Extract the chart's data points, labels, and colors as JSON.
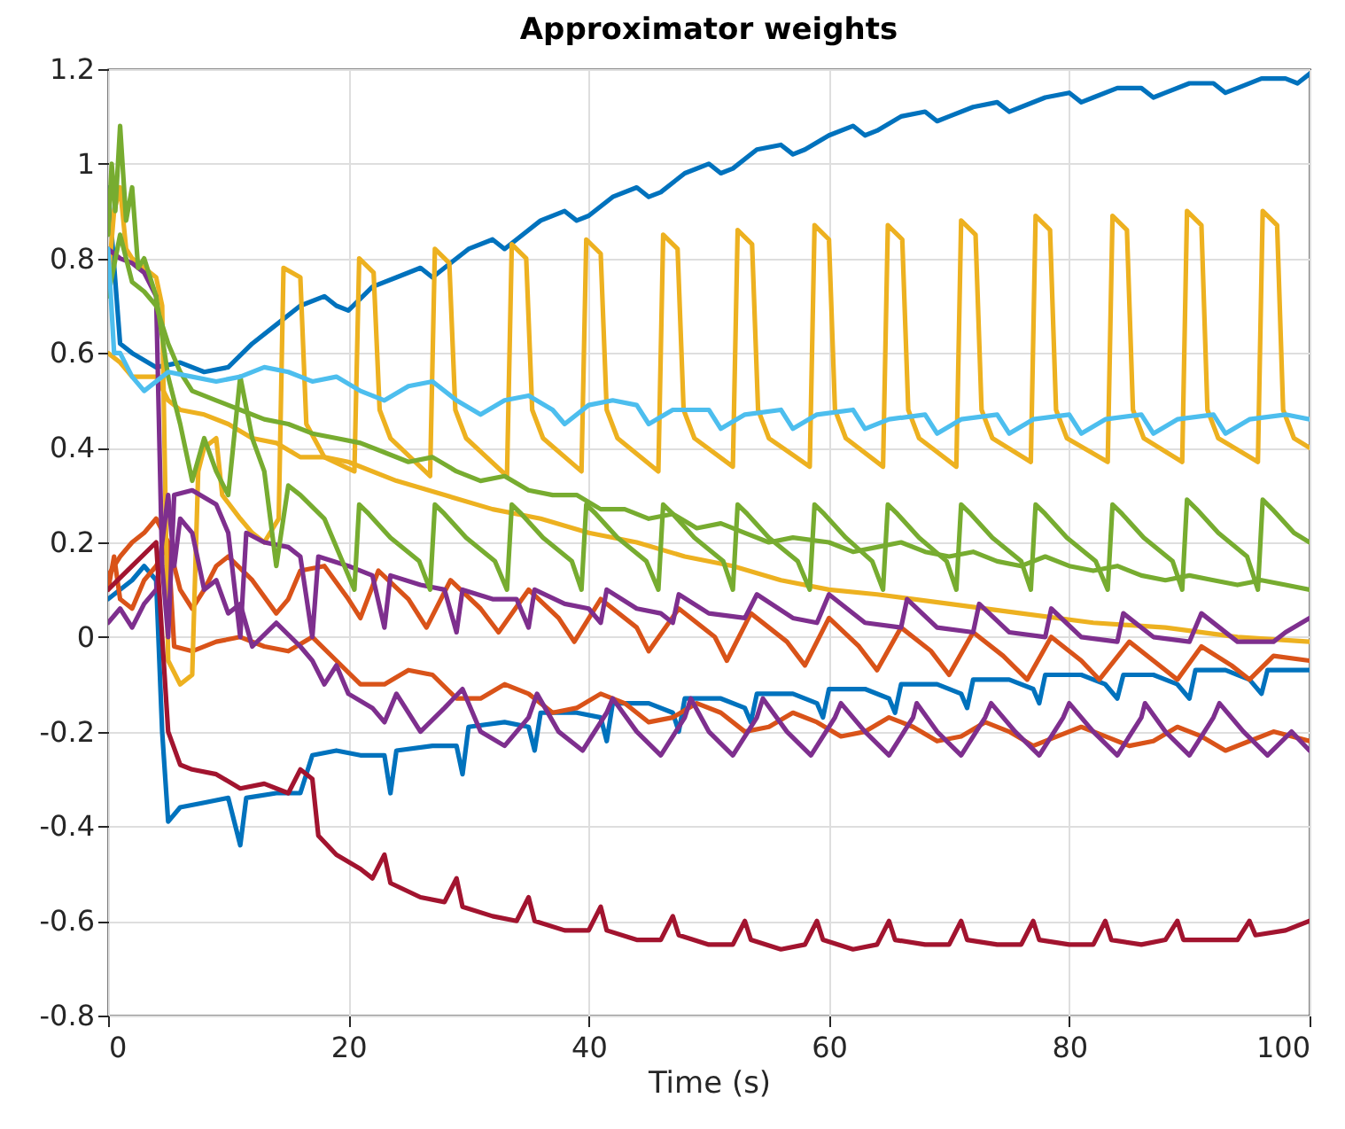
{
  "chart_data": {
    "type": "line",
    "title": "Approximator weights",
    "xlabel": "Time (s)",
    "xlim": [
      0,
      100
    ],
    "xticks": [
      0,
      20,
      40,
      60,
      80,
      100
    ],
    "ylim": [
      -0.8,
      1.2
    ],
    "yticks": [
      -0.8,
      -0.6,
      -0.4,
      -0.2,
      0,
      0.2,
      0.4,
      0.6,
      0.8,
      1,
      1.2
    ],
    "grid": true,
    "legend": false,
    "line_style": "solid",
    "series": [
      {
        "color": "#0072bd",
        "x": [
          0,
          1,
          2,
          4,
          6,
          8,
          10,
          12,
          14,
          16,
          18,
          19,
          20,
          22,
          24,
          26,
          27,
          28,
          30,
          32,
          33,
          34,
          36,
          38,
          39,
          40,
          42,
          44,
          45,
          46,
          48,
          50,
          51,
          52,
          54,
          56,
          57,
          58,
          60,
          62,
          63,
          64,
          66,
          68,
          69,
          70,
          72,
          74,
          75,
          76,
          78,
          80,
          81,
          82,
          84,
          86,
          87,
          88,
          90,
          92,
          93,
          94,
          96,
          98,
          99,
          100
        ],
        "values": [
          0.95,
          0.62,
          0.6,
          0.57,
          0.58,
          0.56,
          0.57,
          0.62,
          0.66,
          0.7,
          0.72,
          0.7,
          0.69,
          0.74,
          0.76,
          0.78,
          0.76,
          0.78,
          0.82,
          0.84,
          0.82,
          0.84,
          0.88,
          0.9,
          0.88,
          0.89,
          0.93,
          0.95,
          0.93,
          0.94,
          0.98,
          1.0,
          0.98,
          0.99,
          1.03,
          1.04,
          1.02,
          1.03,
          1.06,
          1.08,
          1.06,
          1.07,
          1.1,
          1.11,
          1.09,
          1.1,
          1.12,
          1.13,
          1.11,
          1.12,
          1.14,
          1.15,
          1.13,
          1.14,
          1.16,
          1.16,
          1.14,
          1.15,
          1.17,
          1.17,
          1.15,
          1.16,
          1.18,
          1.18,
          1.17,
          1.19
        ]
      },
      {
        "color": "#0072bd",
        "x": [
          0,
          2,
          3,
          4,
          4.5,
          5,
          6,
          8,
          10,
          11,
          11.5,
          14,
          16,
          17,
          19,
          21,
          23,
          23.5,
          24,
          27,
          29,
          29.5,
          30,
          33,
          35,
          35.5,
          36,
          39,
          41,
          41.5,
          42,
          45,
          47,
          47.5,
          48,
          51,
          53,
          53.5,
          54,
          57,
          59,
          59.5,
          60,
          63,
          65,
          65.5,
          66,
          69,
          71,
          71.5,
          72,
          75,
          77,
          77.5,
          78,
          81,
          83,
          84,
          84.5,
          87,
          89,
          90,
          90.5,
          93,
          95,
          96,
          96.5,
          100
        ],
        "values": [
          0.08,
          0.12,
          0.15,
          0.12,
          -0.2,
          -0.39,
          -0.36,
          -0.35,
          -0.34,
          -0.44,
          -0.34,
          -0.33,
          -0.33,
          -0.25,
          -0.24,
          -0.25,
          -0.25,
          -0.33,
          -0.24,
          -0.23,
          -0.23,
          -0.29,
          -0.19,
          -0.18,
          -0.19,
          -0.24,
          -0.16,
          -0.16,
          -0.17,
          -0.22,
          -0.14,
          -0.14,
          -0.16,
          -0.2,
          -0.13,
          -0.13,
          -0.15,
          -0.18,
          -0.12,
          -0.12,
          -0.14,
          -0.17,
          -0.11,
          -0.11,
          -0.13,
          -0.16,
          -0.1,
          -0.1,
          -0.12,
          -0.15,
          -0.09,
          -0.09,
          -0.11,
          -0.14,
          -0.08,
          -0.08,
          -0.1,
          -0.13,
          -0.08,
          -0.08,
          -0.1,
          -0.13,
          -0.07,
          -0.07,
          -0.09,
          -0.12,
          -0.07,
          -0.07
        ]
      },
      {
        "color": "#d95319",
        "x": [
          0,
          0.5,
          1,
          2,
          3,
          4,
          5,
          6,
          7,
          8,
          9,
          10,
          12,
          14,
          15,
          16,
          18,
          20,
          21,
          22.5,
          25,
          26.5,
          28.5,
          31,
          32.5,
          35,
          37.5,
          38.8,
          41,
          44,
          45,
          47.5,
          50.5,
          51.5,
          53.5,
          56.5,
          58,
          60,
          62.5,
          64,
          66,
          68.5,
          70,
          72,
          74.5,
          76.5,
          78.5,
          81,
          82.5,
          85,
          87,
          89,
          91,
          93.5,
          95,
          97,
          100
        ],
        "values": [
          0.1,
          0.17,
          0.08,
          0.06,
          0.12,
          0.15,
          0.2,
          0.1,
          0.06,
          0.1,
          0.15,
          0.17,
          0.12,
          0.05,
          0.08,
          0.14,
          0.15,
          0.08,
          0.04,
          0.14,
          0.08,
          0.02,
          0.12,
          0.06,
          0.01,
          0.1,
          0.04,
          -0.01,
          0.08,
          0.02,
          -0.03,
          0.06,
          0.0,
          -0.05,
          0.05,
          -0.01,
          -0.06,
          0.04,
          -0.02,
          -0.07,
          0.02,
          -0.03,
          -0.08,
          0.01,
          -0.04,
          -0.09,
          0.0,
          -0.05,
          -0.09,
          -0.01,
          -0.05,
          -0.09,
          -0.02,
          -0.06,
          -0.09,
          -0.04,
          -0.05
        ]
      },
      {
        "color": "#d95319",
        "x": [
          0,
          1,
          2,
          3,
          4,
          5,
          5.5,
          7,
          9,
          11,
          13,
          15,
          17,
          19,
          21,
          23,
          25,
          27,
          29,
          31,
          33,
          35,
          37,
          39,
          41,
          43,
          45,
          47,
          49,
          51,
          53,
          55,
          57,
          59,
          61,
          63,
          65,
          67,
          69,
          71,
          73,
          75,
          77,
          79,
          81,
          83,
          85,
          87,
          89,
          91,
          93,
          95,
          97,
          100
        ],
        "values": [
          0.13,
          0.17,
          0.2,
          0.22,
          0.25,
          0.2,
          -0.02,
          -0.03,
          -0.01,
          0.0,
          -0.02,
          -0.03,
          0.0,
          -0.05,
          -0.1,
          -0.1,
          -0.07,
          -0.08,
          -0.13,
          -0.13,
          -0.1,
          -0.12,
          -0.16,
          -0.15,
          -0.12,
          -0.14,
          -0.18,
          -0.17,
          -0.14,
          -0.16,
          -0.2,
          -0.19,
          -0.16,
          -0.18,
          -0.21,
          -0.2,
          -0.17,
          -0.19,
          -0.22,
          -0.21,
          -0.18,
          -0.2,
          -0.23,
          -0.21,
          -0.19,
          -0.21,
          -0.23,
          -0.22,
          -0.19,
          -0.21,
          -0.24,
          -0.22,
          -0.2,
          -0.22
        ]
      },
      {
        "color": "#edb120",
        "x": [
          0,
          0.5,
          1,
          1.5,
          2,
          3,
          4,
          4.5,
          5,
          6,
          7,
          7.5,
          8,
          9,
          9.5,
          11,
          12,
          13,
          14.2,
          14.6,
          16,
          16.5,
          18,
          20.5,
          20.9,
          22.1,
          22.6,
          23.5,
          26.8,
          27.2,
          28.4,
          28.9,
          29.8,
          33.2,
          33.6,
          34.8,
          35.3,
          36.2,
          39.4,
          39.8,
          41,
          41.5,
          42.4,
          45.8,
          46.2,
          47.4,
          47.9,
          48.8,
          52,
          52.4,
          53.6,
          54.1,
          55,
          58.4,
          58.8,
          60,
          60.5,
          61.4,
          64.5,
          64.9,
          66.1,
          66.6,
          67.5,
          70.6,
          71,
          72.2,
          72.7,
          73.6,
          76.8,
          77.2,
          78.4,
          78.9,
          79.8,
          83.2,
          83.6,
          84.8,
          85.3,
          86.2,
          89.4,
          89.8,
          91,
          91.5,
          92.4,
          95.7,
          96.1,
          97.3,
          97.8,
          98.7,
          100
        ],
        "values": [
          0.75,
          0.9,
          0.95,
          0.82,
          0.8,
          0.78,
          0.76,
          0.7,
          -0.05,
          -0.1,
          -0.08,
          0.35,
          0.4,
          0.42,
          0.3,
          0.25,
          0.22,
          0.2,
          0.25,
          0.78,
          0.76,
          0.45,
          0.38,
          0.35,
          0.8,
          0.77,
          0.48,
          0.42,
          0.34,
          0.82,
          0.79,
          0.48,
          0.42,
          0.34,
          0.83,
          0.8,
          0.48,
          0.42,
          0.35,
          0.84,
          0.81,
          0.48,
          0.42,
          0.35,
          0.85,
          0.82,
          0.48,
          0.42,
          0.36,
          0.86,
          0.83,
          0.48,
          0.42,
          0.36,
          0.87,
          0.84,
          0.48,
          0.42,
          0.36,
          0.87,
          0.84,
          0.48,
          0.42,
          0.36,
          0.88,
          0.85,
          0.48,
          0.42,
          0.37,
          0.89,
          0.86,
          0.48,
          0.42,
          0.37,
          0.89,
          0.86,
          0.48,
          0.42,
          0.37,
          0.9,
          0.87,
          0.48,
          0.42,
          0.37,
          0.9,
          0.87,
          0.48,
          0.42,
          0.4
        ]
      },
      {
        "color": "#edb120",
        "x": [
          0,
          1,
          2,
          4,
          5,
          6,
          8,
          10,
          12,
          14,
          16,
          18,
          20,
          24,
          28,
          32,
          36,
          40,
          44,
          48,
          52,
          56,
          60,
          64,
          70,
          76,
          82,
          88,
          94,
          100
        ],
        "values": [
          0.6,
          0.58,
          0.55,
          0.55,
          0.5,
          0.48,
          0.47,
          0.45,
          0.42,
          0.41,
          0.38,
          0.38,
          0.37,
          0.33,
          0.3,
          0.27,
          0.25,
          0.22,
          0.2,
          0.17,
          0.15,
          0.12,
          0.1,
          0.09,
          0.07,
          0.05,
          0.03,
          0.02,
          0.0,
          -0.01
        ]
      },
      {
        "color": "#7e2f8e",
        "x": [
          0,
          1,
          2,
          3,
          4,
          4.5,
          5,
          5.5,
          7,
          9,
          10,
          11,
          11.5,
          13,
          15,
          16,
          17,
          17.5,
          20,
          22,
          23,
          23.5,
          26,
          28,
          29,
          29.5,
          32,
          34,
          35,
          35.5,
          38,
          40,
          41,
          41.5,
          44,
          46,
          47,
          47.5,
          50,
          53,
          54,
          57,
          59,
          60,
          63,
          66,
          66.5,
          69,
          72,
          72.5,
          75,
          78,
          78.5,
          81,
          84,
          84.5,
          87,
          90,
          91,
          94,
          97,
          98,
          100
        ],
        "values": [
          0.82,
          0.8,
          0.79,
          0.77,
          0.72,
          0.15,
          0.0,
          0.3,
          0.31,
          0.28,
          0.22,
          0.0,
          0.22,
          0.2,
          0.19,
          0.17,
          0.0,
          0.17,
          0.15,
          0.13,
          0.02,
          0.13,
          0.11,
          0.1,
          0.01,
          0.1,
          0.08,
          0.08,
          0.02,
          0.1,
          0.07,
          0.06,
          0.03,
          0.1,
          0.06,
          0.05,
          0.03,
          0.09,
          0.05,
          0.04,
          0.09,
          0.04,
          0.03,
          0.09,
          0.03,
          0.02,
          0.08,
          0.02,
          0.01,
          0.07,
          0.01,
          0.0,
          0.06,
          0.0,
          -0.01,
          0.05,
          0.0,
          -0.01,
          0.05,
          -0.01,
          -0.01,
          0.01,
          0.04
        ]
      },
      {
        "color": "#7e2f8e",
        "x": [
          0,
          1,
          2,
          3,
          4,
          5,
          5.5,
          6,
          7,
          8,
          9,
          10,
          11,
          12,
          14,
          16,
          17,
          18,
          19,
          20,
          22,
          23,
          24,
          26,
          28,
          29.5,
          31,
          33,
          35,
          35.7,
          37.5,
          39.5,
          41.5,
          42,
          44,
          46,
          48,
          48.5,
          50,
          52,
          54,
          54.5,
          56.5,
          58.5,
          60.5,
          61,
          63,
          65,
          67,
          67.3,
          69,
          71,
          73,
          73.5,
          75.5,
          77.5,
          79.5,
          80,
          82,
          84,
          86,
          86.3,
          88,
          90,
          92,
          92.5,
          94.5,
          96.5,
          98.5,
          100
        ],
        "values": [
          0.03,
          0.06,
          0.02,
          0.07,
          0.1,
          0.3,
          0.15,
          0.25,
          0.22,
          0.1,
          0.12,
          0.05,
          0.07,
          -0.02,
          0.03,
          -0.02,
          -0.05,
          -0.1,
          -0.06,
          -0.12,
          -0.15,
          -0.18,
          -0.12,
          -0.2,
          -0.15,
          -0.11,
          -0.2,
          -0.23,
          -0.17,
          -0.12,
          -0.2,
          -0.24,
          -0.16,
          -0.13,
          -0.2,
          -0.25,
          -0.17,
          -0.13,
          -0.2,
          -0.25,
          -0.17,
          -0.13,
          -0.2,
          -0.25,
          -0.17,
          -0.14,
          -0.2,
          -0.25,
          -0.17,
          -0.14,
          -0.2,
          -0.25,
          -0.17,
          -0.14,
          -0.2,
          -0.25,
          -0.17,
          -0.14,
          -0.2,
          -0.25,
          -0.17,
          -0.14,
          -0.2,
          -0.25,
          -0.17,
          -0.14,
          -0.2,
          -0.25,
          -0.2,
          -0.24
        ]
      },
      {
        "color": "#77ac30",
        "x": [
          0,
          0.3,
          0.6,
          1,
          1.5,
          2,
          2.5,
          3,
          4,
          5,
          6,
          7,
          8,
          9,
          10,
          11,
          12,
          13,
          14,
          15,
          16,
          18,
          20.5,
          20.9,
          21.7,
          23.5,
          25.9,
          26.8,
          27.2,
          28,
          29.8,
          32.2,
          33.2,
          33.6,
          34.4,
          36.2,
          38.6,
          39.4,
          39.8,
          40.6,
          42.4,
          44.8,
          45.8,
          46.2,
          47,
          48.8,
          51.2,
          52,
          52.4,
          53.2,
          55,
          57.4,
          58.4,
          58.8,
          59.6,
          61.4,
          63.6,
          64.5,
          64.9,
          65.7,
          67.5,
          69.8,
          70.6,
          71,
          71.8,
          73.6,
          76,
          76.8,
          77.2,
          78,
          79.8,
          82.2,
          83.2,
          83.6,
          84.4,
          86.2,
          88.6,
          89.4,
          89.8,
          90.6,
          92.4,
          94.8,
          95.7,
          96.1,
          96.9,
          98.7,
          100
        ],
        "values": [
          0.85,
          1.0,
          0.9,
          1.08,
          0.88,
          0.95,
          0.78,
          0.8,
          0.72,
          0.55,
          0.45,
          0.33,
          0.42,
          0.35,
          0.3,
          0.55,
          0.42,
          0.35,
          0.15,
          0.32,
          0.3,
          0.25,
          0.1,
          0.28,
          0.26,
          0.21,
          0.16,
          0.1,
          0.28,
          0.26,
          0.21,
          0.16,
          0.1,
          0.28,
          0.26,
          0.21,
          0.16,
          0.1,
          0.28,
          0.26,
          0.21,
          0.16,
          0.1,
          0.28,
          0.26,
          0.21,
          0.16,
          0.1,
          0.28,
          0.26,
          0.21,
          0.16,
          0.1,
          0.28,
          0.26,
          0.21,
          0.16,
          0.1,
          0.28,
          0.26,
          0.21,
          0.16,
          0.1,
          0.28,
          0.26,
          0.21,
          0.16,
          0.1,
          0.28,
          0.26,
          0.21,
          0.16,
          0.1,
          0.28,
          0.26,
          0.21,
          0.16,
          0.1,
          0.29,
          0.27,
          0.22,
          0.17,
          0.1,
          0.29,
          0.27,
          0.22,
          0.2
        ]
      },
      {
        "color": "#77ac30",
        "x": [
          0,
          1,
          2,
          3,
          4,
          5,
          6,
          7,
          9,
          11,
          13,
          15,
          17,
          19,
          21,
          23,
          25,
          27,
          29,
          31,
          33,
          35,
          37,
          39,
          41,
          43,
          45,
          47,
          49,
          51,
          53,
          55,
          57,
          60,
          62,
          64,
          66,
          68,
          70,
          72,
          74,
          76,
          78,
          80,
          82,
          84,
          86,
          88,
          90,
          92,
          94,
          96,
          98,
          100
        ],
        "values": [
          0.72,
          0.85,
          0.75,
          0.73,
          0.7,
          0.62,
          0.56,
          0.52,
          0.5,
          0.48,
          0.46,
          0.45,
          0.43,
          0.42,
          0.41,
          0.39,
          0.37,
          0.38,
          0.35,
          0.33,
          0.34,
          0.31,
          0.3,
          0.3,
          0.27,
          0.27,
          0.25,
          0.26,
          0.23,
          0.24,
          0.22,
          0.2,
          0.21,
          0.2,
          0.18,
          0.19,
          0.2,
          0.18,
          0.17,
          0.18,
          0.16,
          0.15,
          0.17,
          0.15,
          0.14,
          0.15,
          0.13,
          0.12,
          0.13,
          0.12,
          0.11,
          0.12,
          0.11,
          0.1
        ]
      },
      {
        "color": "#4dbeee",
        "x": [
          0,
          0.5,
          1,
          2,
          3,
          5,
          7,
          9,
          11,
          13,
          15,
          17,
          19,
          21,
          23,
          25,
          27,
          29,
          31,
          33,
          35,
          37,
          38,
          40,
          42,
          44,
          45,
          47,
          50,
          51,
          53,
          56,
          57,
          59,
          62,
          63,
          65,
          68,
          69,
          71,
          74,
          75,
          77,
          80,
          81,
          83,
          86,
          87,
          89,
          92,
          93,
          95,
          98,
          100
        ],
        "values": [
          0.82,
          0.6,
          0.6,
          0.55,
          0.52,
          0.56,
          0.55,
          0.54,
          0.55,
          0.57,
          0.56,
          0.54,
          0.55,
          0.52,
          0.5,
          0.53,
          0.54,
          0.5,
          0.47,
          0.5,
          0.51,
          0.48,
          0.45,
          0.49,
          0.5,
          0.49,
          0.45,
          0.48,
          0.48,
          0.44,
          0.47,
          0.48,
          0.44,
          0.47,
          0.48,
          0.44,
          0.46,
          0.47,
          0.43,
          0.46,
          0.47,
          0.43,
          0.46,
          0.47,
          0.43,
          0.46,
          0.47,
          0.43,
          0.46,
          0.47,
          0.43,
          0.46,
          0.47,
          0.46
        ]
      },
      {
        "color": "#a2142f",
        "x": [
          0,
          2,
          4,
          4.5,
          5,
          6,
          7,
          9,
          11,
          13,
          15,
          16,
          17,
          17.5,
          19,
          21,
          22,
          23,
          23.5,
          26,
          28,
          29,
          29.5,
          32,
          34,
          35,
          35.5,
          38,
          40,
          41,
          41.5,
          44,
          46,
          47,
          47.5,
          50,
          52,
          53,
          53.5,
          56,
          58,
          59,
          59.5,
          62,
          64,
          65,
          65.5,
          68,
          70,
          71,
          71.5,
          74,
          76,
          77,
          77.5,
          80,
          82,
          83,
          83.5,
          86,
          88,
          89,
          89.5,
          92,
          94,
          95,
          95.5,
          98,
          100
        ],
        "values": [
          0.1,
          0.15,
          0.2,
          0.0,
          -0.2,
          -0.27,
          -0.28,
          -0.29,
          -0.32,
          -0.31,
          -0.33,
          -0.28,
          -0.3,
          -0.42,
          -0.46,
          -0.49,
          -0.51,
          -0.46,
          -0.52,
          -0.55,
          -0.56,
          -0.51,
          -0.57,
          -0.59,
          -0.6,
          -0.55,
          -0.6,
          -0.62,
          -0.62,
          -0.57,
          -0.62,
          -0.64,
          -0.64,
          -0.59,
          -0.63,
          -0.65,
          -0.65,
          -0.6,
          -0.64,
          -0.66,
          -0.65,
          -0.6,
          -0.64,
          -0.66,
          -0.65,
          -0.6,
          -0.64,
          -0.65,
          -0.65,
          -0.6,
          -0.64,
          -0.65,
          -0.65,
          -0.6,
          -0.64,
          -0.65,
          -0.65,
          -0.6,
          -0.64,
          -0.65,
          -0.64,
          -0.6,
          -0.64,
          -0.64,
          -0.64,
          -0.6,
          -0.63,
          -0.62,
          -0.6
        ]
      }
    ]
  }
}
